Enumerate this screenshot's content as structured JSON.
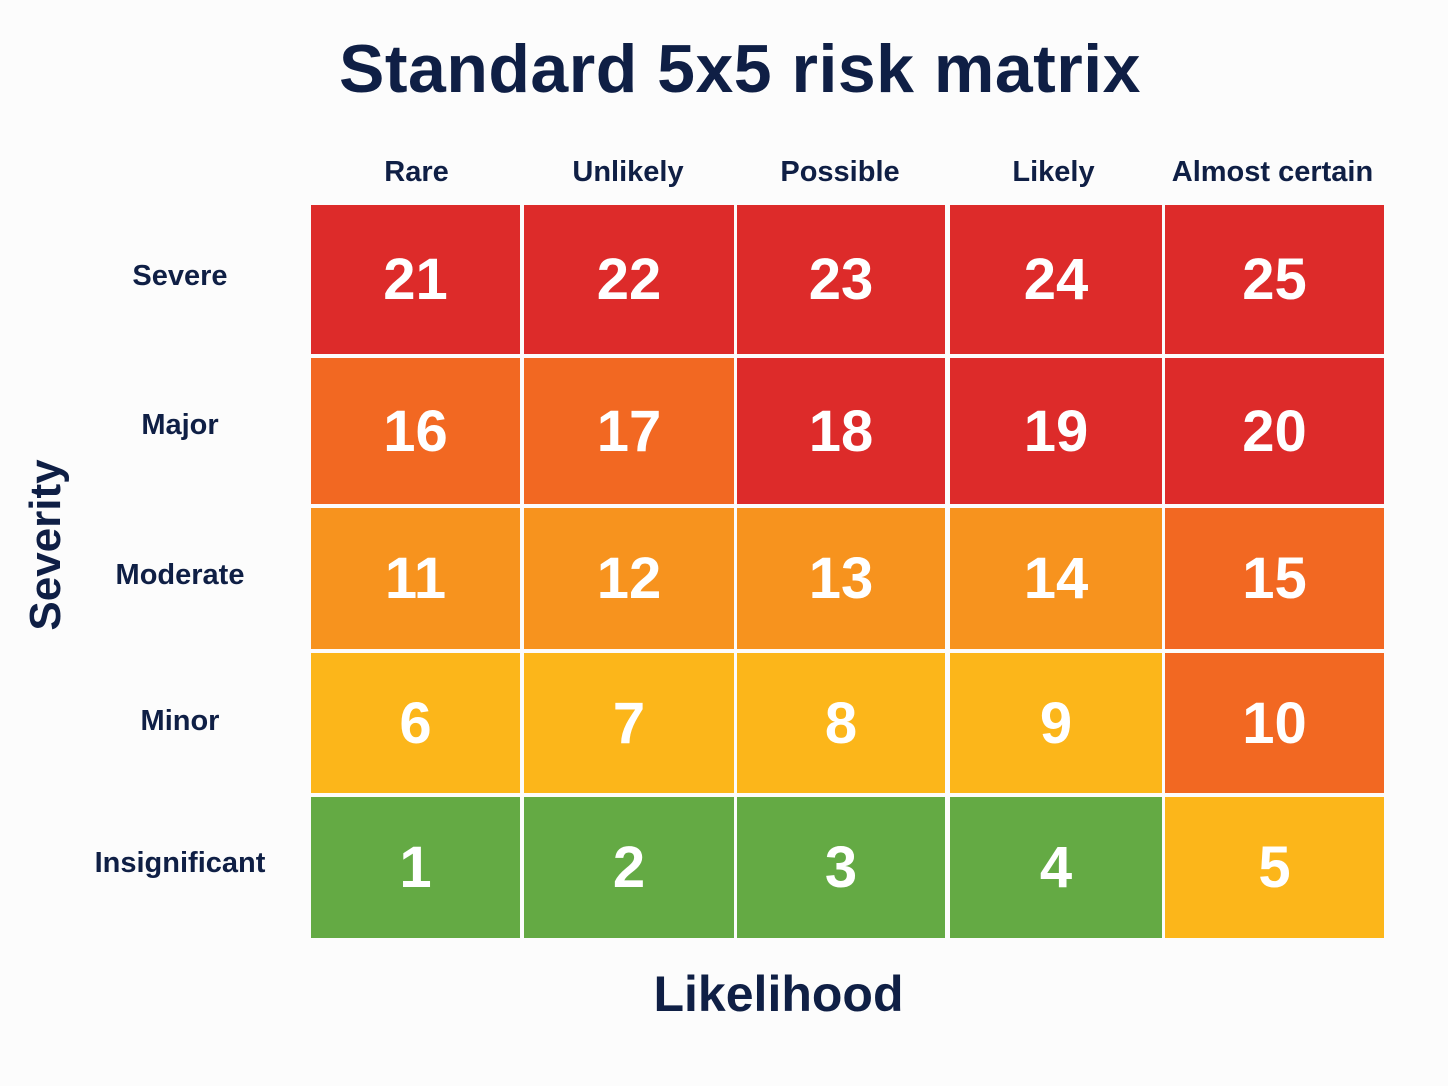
{
  "title": "Standard 5x5 risk matrix",
  "x_axis_label": "Likelihood",
  "y_axis_label": "Severity",
  "columns": [
    "Rare",
    "Unlikely",
    "Possible",
    "Likely",
    "Almost certain"
  ],
  "rows": [
    "Severe",
    "Major",
    "Moderate",
    "Minor",
    "Insignificant"
  ],
  "colors": {
    "red": "#dd2b2a",
    "dark_orange": "#f26822",
    "orange": "#f7931e",
    "yellow": "#fcb61a",
    "green": "#64aa44",
    "text": "#0f1f45"
  },
  "cells": [
    [
      {
        "value": "21",
        "color": "red"
      },
      {
        "value": "22",
        "color": "red"
      },
      {
        "value": "23",
        "color": "red"
      },
      {
        "value": "24",
        "color": "red"
      },
      {
        "value": "25",
        "color": "red"
      }
    ],
    [
      {
        "value": "16",
        "color": "dark_orange"
      },
      {
        "value": "17",
        "color": "dark_orange"
      },
      {
        "value": "18",
        "color": "red"
      },
      {
        "value": "19",
        "color": "red"
      },
      {
        "value": "20",
        "color": "red"
      }
    ],
    [
      {
        "value": "11",
        "color": "orange"
      },
      {
        "value": "12",
        "color": "orange"
      },
      {
        "value": "13",
        "color": "orange"
      },
      {
        "value": "14",
        "color": "orange"
      },
      {
        "value": "15",
        "color": "dark_orange"
      }
    ],
    [
      {
        "value": "6",
        "color": "yellow"
      },
      {
        "value": "7",
        "color": "yellow"
      },
      {
        "value": "8",
        "color": "yellow"
      },
      {
        "value": "9",
        "color": "yellow"
      },
      {
        "value": "10",
        "color": "dark_orange"
      }
    ],
    [
      {
        "value": "1",
        "color": "green"
      },
      {
        "value": "2",
        "color": "green"
      },
      {
        "value": "3",
        "color": "green"
      },
      {
        "value": "4",
        "color": "green"
      },
      {
        "value": "5",
        "color": "yellow"
      }
    ]
  ]
}
